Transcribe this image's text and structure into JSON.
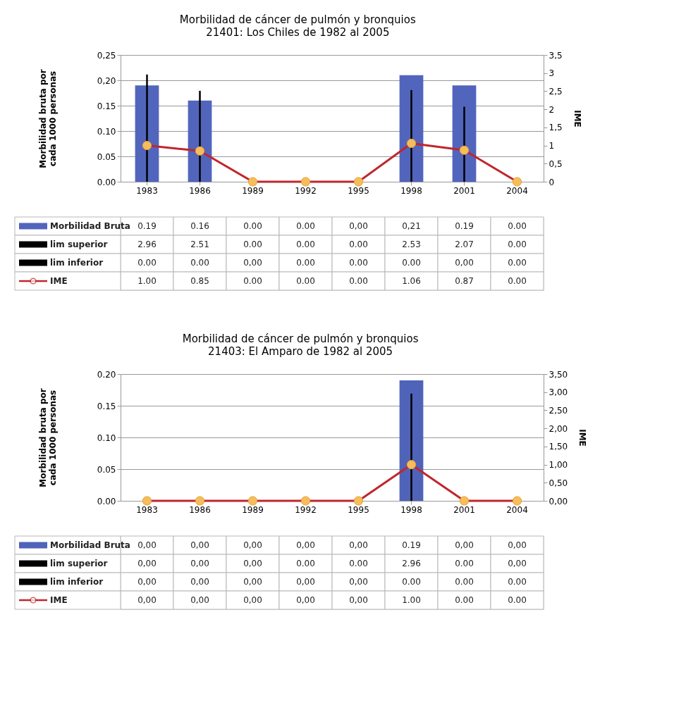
{
  "chart_data": [
    {
      "type": "bar",
      "title": "Morbilidad de cáncer de pulmón y bronquios",
      "subtitle": "21401: Los Chiles de 1982 al 2005",
      "ylabel": "Morbilidad bruta por cada 1000 personas",
      "y2label": "IME",
      "categories": [
        "1983",
        "1986",
        "1989",
        "1992",
        "1995",
        "1998",
        "2001",
        "2004"
      ],
      "series": [
        {
          "name": "Morbilidad Bruta",
          "color": "#5265bd",
          "values": [
            0.19,
            0.16,
            0.0,
            0.0,
            0.0,
            0.21,
            0.19,
            0.0
          ],
          "value_labels": [
            "0.19",
            "0.16",
            "0.00",
            "0.00",
            "0,00",
            "0,21",
            "0.19",
            "0.00"
          ]
        },
        {
          "name": "lim superior",
          "type": "bar",
          "axis": "y2",
          "color": "#000000",
          "values": [
            2.96,
            2.51,
            0.0,
            0.0,
            0.0,
            2.53,
            2.07,
            0.0
          ],
          "value_labels": [
            "2.96",
            "2.51",
            "0.00",
            "0.00",
            "0.00",
            "2.53",
            "2.07",
            "0.00"
          ]
        },
        {
          "name": "lim inferior",
          "type": "bar",
          "axis": "y2",
          "color": "#000000",
          "values": [
            0.0,
            0.0,
            0.0,
            0.0,
            0.0,
            0.0,
            0.0,
            0.0
          ],
          "value_labels": [
            "0.00",
            "0.00",
            "0,00",
            "0.00",
            "0.00",
            "0.00",
            "0,00",
            "0.00"
          ]
        },
        {
          "name": "IME",
          "type": "line",
          "axis": "y2",
          "color": "#c0262c",
          "values": [
            1.0,
            0.85,
            0.0,
            0.0,
            0.0,
            1.06,
            0.87,
            0.0
          ],
          "value_labels": [
            "1.00",
            "0.85",
            "0.00",
            "0.00",
            "0.00",
            "1.06",
            "0.87",
            "0.00"
          ]
        }
      ],
      "ylim": [
        0,
        0.25
      ],
      "yticks": [
        {
          "value": 0,
          "label": "0.00"
        },
        {
          "value": 0.05,
          "label": "0.05"
        },
        {
          "value": 0.1,
          "label": "0.10"
        },
        {
          "value": 0.15,
          "label": "0.15"
        },
        {
          "value": 0.2,
          "label": "0,20"
        },
        {
          "value": 0.25,
          "label": "0,25"
        }
      ],
      "y2lim": [
        0,
        3.5
      ],
      "y2ticks": [
        0,
        {
          "value": 0.5,
          "label": "0,5"
        },
        1,
        {
          "value": 1.5,
          "label": "1,5"
        },
        2,
        {
          "value": 2.5,
          "label": "2,5"
        },
        3,
        {
          "value": 3.5,
          "label": "3,5"
        }
      ],
      "grid": "y",
      "legend": "bottom",
      "marker": "circle",
      "line_style": "solid"
    },
    {
      "type": "bar",
      "title": "Morbilidad de cáncer de pulmón y bronquios",
      "subtitle": "21403: El Amparo de 1982 al 2005",
      "ylabel": "Morbilidad bruta por cada 1000 personas",
      "y2label": "IME",
      "categories": [
        "1983",
        "1986",
        "1989",
        "1992",
        "1995",
        "1998",
        "2001",
        "2004"
      ],
      "series": [
        {
          "name": "Morbilidad Bruta",
          "color": "#4f63b8",
          "values": [
            0.0,
            0.0,
            0.0,
            0.0,
            0.0,
            0.19,
            0.0,
            0.0
          ],
          "value_labels": [
            "0,00",
            "0,00",
            "0,00",
            "0,00",
            "0,00",
            "0.19",
            "0,00",
            "0,00"
          ]
        },
        {
          "name": "lim superior",
          "type": "bar",
          "axis": "y2",
          "color": "#000000",
          "values": [
            0.0,
            0.0,
            0.0,
            0.0,
            0.0,
            2.96,
            0.0,
            0.0
          ],
          "value_labels": [
            "0,00",
            "0,00",
            "0,00",
            "0.00",
            "0.00",
            "2.96",
            "0.00",
            "0,00"
          ]
        },
        {
          "name": "lim inferior",
          "type": "bar",
          "axis": "y2",
          "color": "#000000",
          "values": [
            0.0,
            0.0,
            0.0,
            0.0,
            0.0,
            0.0,
            0.0,
            0.0
          ],
          "value_labels": [
            "0,00",
            "0,00",
            "0,00",
            "0,00",
            "0,00",
            "0.00",
            "0.00",
            "0.00"
          ]
        },
        {
          "name": "IME",
          "type": "line",
          "axis": "y2",
          "color": "#c0262c",
          "values": [
            0.0,
            0.0,
            0.0,
            0.0,
            0.0,
            1.0,
            0.0,
            0.0
          ],
          "value_labels": [
            "0,00",
            "0,00",
            "0,00",
            "0,00",
            "0,00",
            "1.00",
            "0.00",
            "0.00"
          ]
        }
      ],
      "ylim": [
        0,
        0.2
      ],
      "yticks": [
        {
          "value": 0,
          "label": "0.00"
        },
        {
          "value": 0.05,
          "label": "0.05"
        },
        {
          "value": 0.1,
          "label": "0.10"
        },
        {
          "value": 0.15,
          "label": "0.15"
        },
        {
          "value": 0.2,
          "label": "0.20"
        }
      ],
      "y2lim": [
        0,
        3.5
      ],
      "y2ticks": [
        {
          "value": 0,
          "label": "0,00"
        },
        {
          "value": 0.5,
          "label": "0,50"
        },
        {
          "value": 1,
          "label": "1,00"
        },
        {
          "value": 1.5,
          "label": "1,50"
        },
        {
          "value": 2,
          "label": "2,00"
        },
        {
          "value": 2.5,
          "label": "2,50"
        },
        {
          "value": 3,
          "label": "3,00"
        },
        {
          "value": 3.5,
          "label": "3,50"
        }
      ],
      "grid": "y",
      "legend": "bottom",
      "marker": "circle",
      "line_style": "solid"
    }
  ]
}
